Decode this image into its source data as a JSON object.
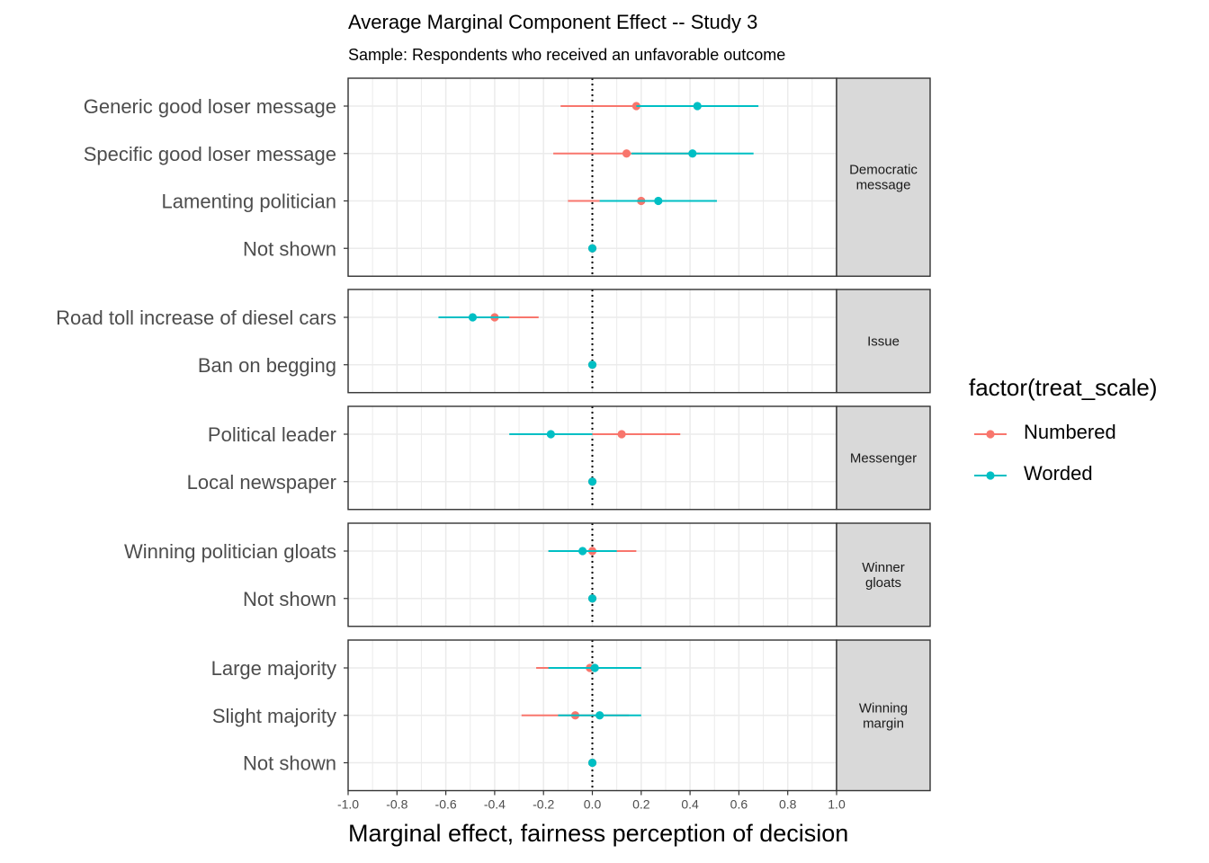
{
  "title": "Average Marginal Component Effect -- Study 3",
  "subtitle": "Sample: Respondents who received an unfavorable outcome",
  "colors": {
    "numbered": "#F8766D",
    "worded": "#00BFC4",
    "strip": "#D9D9D9",
    "grid": "#EBEBEB",
    "panel_border": "#333333"
  },
  "chart_data": {
    "type": "scatter",
    "xlabel": "Marginal effect, fairness perception of decision",
    "xlim": [
      -1.0,
      1.0
    ],
    "x_ticks": [
      "-1.0",
      "-0.8",
      "-0.6",
      "-0.4",
      "-0.2",
      "0.0",
      "0.2",
      "0.4",
      "0.6",
      "0.8",
      "1.0"
    ],
    "reference_line": 0,
    "grid": true,
    "legend": {
      "title": "factor(treat_scale)",
      "position": "right",
      "entries": [
        "Numbered",
        "Worded"
      ]
    },
    "panels": [
      {
        "strip": [
          "Democratic",
          "message"
        ],
        "rows": [
          {
            "label": "Generic good loser message",
            "numbered": {
              "est": 0.18,
              "lo": -0.13,
              "hi": 0.48
            },
            "worded": {
              "est": 0.43,
              "lo": 0.18,
              "hi": 0.68
            }
          },
          {
            "label": "Specific good loser message",
            "numbered": {
              "est": 0.14,
              "lo": -0.16,
              "hi": 0.44
            },
            "worded": {
              "est": 0.41,
              "lo": 0.16,
              "hi": 0.66
            }
          },
          {
            "label": "Lamenting politician",
            "numbered": {
              "est": 0.2,
              "lo": -0.1,
              "hi": 0.5
            },
            "worded": {
              "est": 0.27,
              "lo": 0.03,
              "hi": 0.51
            }
          },
          {
            "label": "Not shown",
            "numbered": {
              "est": 0.0,
              "lo": 0.0,
              "hi": 0.0
            },
            "worded": {
              "est": 0.0,
              "lo": 0.0,
              "hi": 0.0
            }
          }
        ]
      },
      {
        "strip": [
          "Issue"
        ],
        "rows": [
          {
            "label": "Road toll increase of diesel cars",
            "numbered": {
              "est": -0.4,
              "lo": -0.58,
              "hi": -0.22
            },
            "worded": {
              "est": -0.49,
              "lo": -0.63,
              "hi": -0.34
            }
          },
          {
            "label": "Ban on begging",
            "numbered": {
              "est": 0.0,
              "lo": 0.0,
              "hi": 0.0
            },
            "worded": {
              "est": 0.0,
              "lo": 0.0,
              "hi": 0.0
            }
          }
        ]
      },
      {
        "strip": [
          "Messenger"
        ],
        "rows": [
          {
            "label": "Political leader",
            "numbered": {
              "est": 0.12,
              "lo": -0.12,
              "hi": 0.36
            },
            "worded": {
              "est": -0.17,
              "lo": -0.34,
              "hi": 0.0
            }
          },
          {
            "label": "Local newspaper",
            "numbered": {
              "est": 0.0,
              "lo": 0.0,
              "hi": 0.0
            },
            "worded": {
              "est": 0.0,
              "lo": 0.0,
              "hi": 0.0
            }
          }
        ]
      },
      {
        "strip": [
          "Winner",
          "gloats"
        ],
        "rows": [
          {
            "label": "Winning politician gloats",
            "numbered": {
              "est": 0.0,
              "lo": -0.18,
              "hi": 0.18
            },
            "worded": {
              "est": -0.04,
              "lo": -0.18,
              "hi": 0.1
            }
          },
          {
            "label": "Not shown",
            "numbered": {
              "est": 0.0,
              "lo": 0.0,
              "hi": 0.0
            },
            "worded": {
              "est": 0.0,
              "lo": 0.0,
              "hi": 0.0
            }
          }
        ]
      },
      {
        "strip": [
          "Winning",
          "margin"
        ],
        "rows": [
          {
            "label": "Large majority",
            "numbered": {
              "est": -0.01,
              "lo": -0.23,
              "hi": 0.2
            },
            "worded": {
              "est": 0.01,
              "lo": -0.18,
              "hi": 0.2
            }
          },
          {
            "label": "Slight majority",
            "numbered": {
              "est": -0.07,
              "lo": -0.29,
              "hi": 0.15
            },
            "worded": {
              "est": 0.03,
              "lo": -0.14,
              "hi": 0.2
            }
          },
          {
            "label": "Not shown",
            "numbered": {
              "est": 0.0,
              "lo": 0.0,
              "hi": 0.0
            },
            "worded": {
              "est": 0.0,
              "lo": 0.0,
              "hi": 0.0
            }
          }
        ]
      }
    ]
  }
}
